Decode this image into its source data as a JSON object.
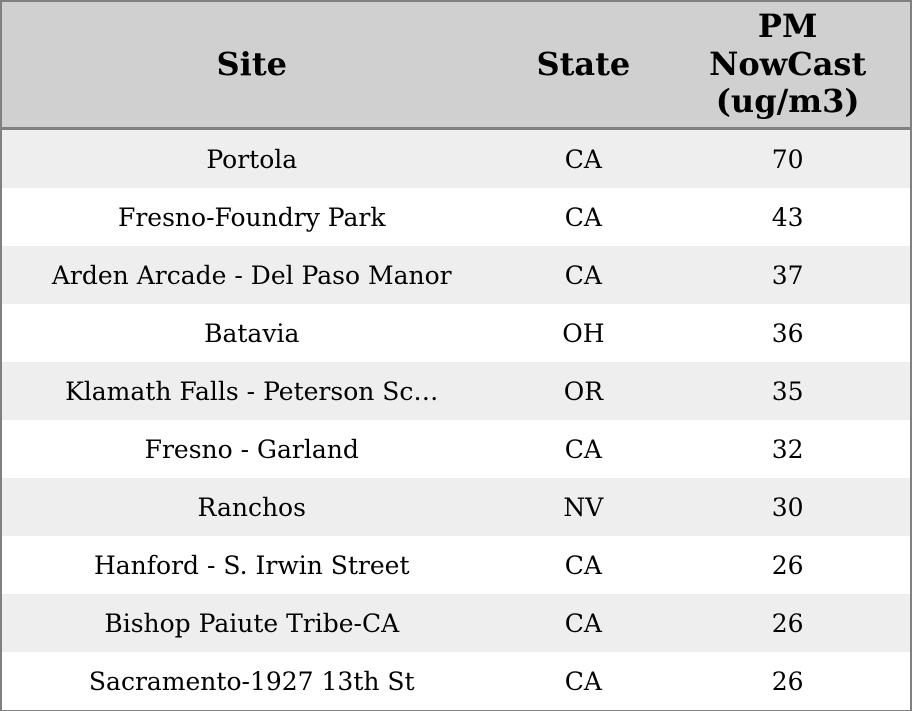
{
  "table": {
    "columns": [
      {
        "key": "site",
        "label": "Site"
      },
      {
        "key": "state",
        "label": "State"
      },
      {
        "key": "pm_nowcast",
        "label": "PM\nNowCast\n(ug/m3)"
      }
    ],
    "rows": [
      {
        "site": "Portola",
        "state": "CA",
        "pm_nowcast": "70"
      },
      {
        "site": "Fresno-Foundry Park",
        "state": "CA",
        "pm_nowcast": "43"
      },
      {
        "site": "Arden Arcade - Del Paso Manor",
        "state": "CA",
        "pm_nowcast": "37"
      },
      {
        "site": "Batavia",
        "state": "OH",
        "pm_nowcast": "36"
      },
      {
        "site": "Klamath Falls - Peterson Sc…",
        "state": "OR",
        "pm_nowcast": "35"
      },
      {
        "site": "Fresno - Garland",
        "state": "CA",
        "pm_nowcast": "32"
      },
      {
        "site": "Ranchos",
        "state": "NV",
        "pm_nowcast": "30"
      },
      {
        "site": "Hanford - S. Irwin Street",
        "state": "CA",
        "pm_nowcast": "26"
      },
      {
        "site": "Bishop Paiute Tribe-CA",
        "state": "CA",
        "pm_nowcast": "26"
      },
      {
        "site": "Sacramento-1927 13th St",
        "state": "CA",
        "pm_nowcast": "26"
      }
    ]
  },
  "colors": {
    "header_bg": "#d0d0d0",
    "row_odd": "#eeeeee",
    "row_even": "#ffffff",
    "border": "#808080",
    "text": "#000000"
  }
}
